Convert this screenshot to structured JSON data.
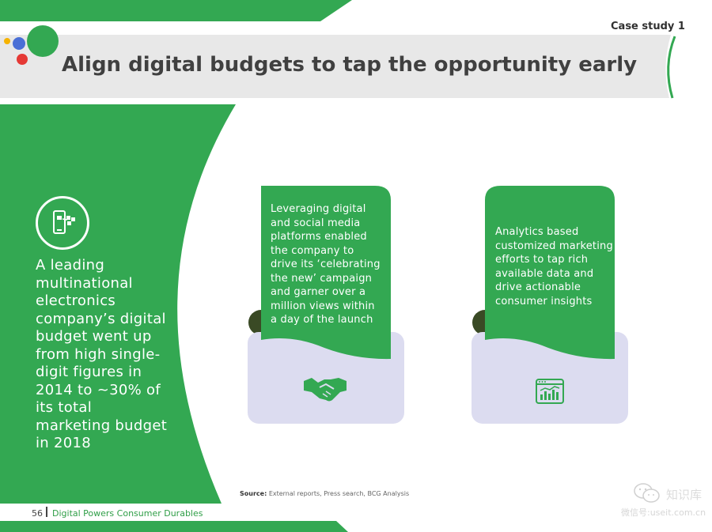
{
  "header": {
    "case_label": "Case study 1",
    "title": "Align digital budgets to tap the opportunity early"
  },
  "left_panel": {
    "icon": "smartphone-share-icon",
    "text": "A leading multinational electronics company’s digital budget went up from high single- digit figures in 2014 to ~30% of its total marketing budget in 2018"
  },
  "cards": [
    {
      "text": "Leveraging digital and social media platforms enabled the company to drive its ‘celebrating the new’ campaign and garner over a million views within a day of the launch",
      "icon": "handshake-icon"
    },
    {
      "text": "Analytics based customized marketing efforts to tap rich available data and drive actionable consumer insights",
      "icon": "analytics-dashboard-icon"
    }
  ],
  "source": {
    "label": "Source:",
    "text": "External reports, Press search, BCG Analysis"
  },
  "footer": {
    "page_number": "56",
    "doc_title": "Digital Powers Consumer Durables"
  },
  "watermark": {
    "brand": "知识库",
    "sub": "微信号:useit.com.cn"
  },
  "colors": {
    "green": "#33a852",
    "dark_green": "#3a4a25",
    "lavender": "#dcdcf0",
    "grey_band": "#e8e8e8",
    "blue_dot": "#4a6fd6",
    "red_dot": "#e53935",
    "yellow_dot": "#f6b300"
  }
}
